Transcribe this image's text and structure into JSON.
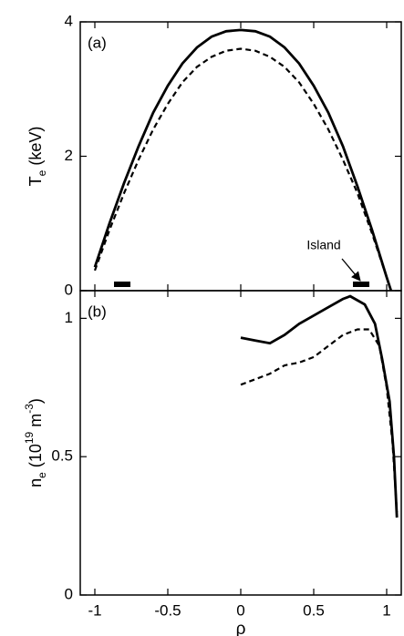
{
  "chart_data": [
    {
      "type": "line",
      "panel_label": "(a)",
      "ylabel": [
        {
          "text": "T"
        },
        {
          "text": "e",
          "style": "sub"
        },
        {
          "text": "  (keV)"
        }
      ],
      "xlim": [
        -1.1,
        1.1
      ],
      "ylim": [
        0,
        4
      ],
      "xticks": [
        -1,
        -0.5,
        0,
        0.5,
        1
      ],
      "yticks": [
        0,
        2,
        4
      ],
      "annotation": "Island",
      "series": [
        {
          "color": "#000",
          "dash": false,
          "x": [
            -1,
            -0.9,
            -0.8,
            -0.7,
            -0.6,
            -0.5,
            -0.4,
            -0.3,
            -0.2,
            -0.1,
            0,
            0.1,
            0.2,
            0.3,
            0.4,
            0.5,
            0.6,
            0.7,
            0.8,
            0.9,
            1.0,
            1.03
          ],
          "values": [
            0.35,
            1.0,
            1.6,
            2.15,
            2.65,
            3.05,
            3.38,
            3.62,
            3.78,
            3.86,
            3.88,
            3.86,
            3.78,
            3.62,
            3.38,
            3.05,
            2.65,
            2.15,
            1.55,
            0.9,
            0.2,
            0
          ]
        },
        {
          "color": "#000",
          "dash": true,
          "x": [
            -1,
            -0.9,
            -0.8,
            -0.7,
            -0.6,
            -0.5,
            -0.4,
            -0.3,
            -0.2,
            -0.1,
            0,
            0.1,
            0.2,
            0.3,
            0.4,
            0.5,
            0.6,
            0.7,
            0.8,
            0.9,
            1.0,
            1.03
          ],
          "values": [
            0.3,
            0.9,
            1.45,
            1.95,
            2.4,
            2.78,
            3.1,
            3.33,
            3.48,
            3.57,
            3.6,
            3.57,
            3.48,
            3.33,
            3.1,
            2.78,
            2.4,
            1.95,
            1.45,
            0.85,
            0.2,
            0
          ]
        }
      ]
    },
    {
      "type": "line",
      "panel_label": "(b)",
      "ylabel": [
        {
          "text": "n"
        },
        {
          "text": "e",
          "style": "sub"
        },
        {
          "text": "  (10"
        },
        {
          "text": "19",
          "style": "sup"
        },
        {
          "text": " m"
        },
        {
          "text": "-3",
          "style": "sup"
        },
        {
          "text": ")"
        }
      ],
      "xlabel": "ρ",
      "xlim": [
        -1.1,
        1.1
      ],
      "ylim": [
        0,
        1.1
      ],
      "xticks": [
        -1,
        -0.5,
        0,
        0.5,
        1
      ],
      "yticks": [
        0,
        0.5,
        1
      ],
      "series": [
        {
          "color": "#000",
          "dash": false,
          "x": [
            0,
            0.1,
            0.2,
            0.3,
            0.4,
            0.5,
            0.6,
            0.7,
            0.75,
            0.85,
            0.92,
            0.97,
            1.02,
            1.05,
            1.07
          ],
          "values": [
            0.93,
            0.92,
            0.91,
            0.94,
            0.98,
            1.01,
            1.04,
            1.07,
            1.08,
            1.05,
            0.98,
            0.85,
            0.7,
            0.5,
            0.28
          ]
        },
        {
          "color": "#000",
          "dash": true,
          "x": [
            0,
            0.1,
            0.2,
            0.3,
            0.4,
            0.5,
            0.6,
            0.7,
            0.8,
            0.88,
            0.95,
            1.0,
            1.04,
            1.07
          ],
          "values": [
            0.76,
            0.78,
            0.8,
            0.83,
            0.84,
            0.86,
            0.9,
            0.94,
            0.96,
            0.96,
            0.9,
            0.75,
            0.55,
            0.3
          ]
        }
      ]
    }
  ]
}
